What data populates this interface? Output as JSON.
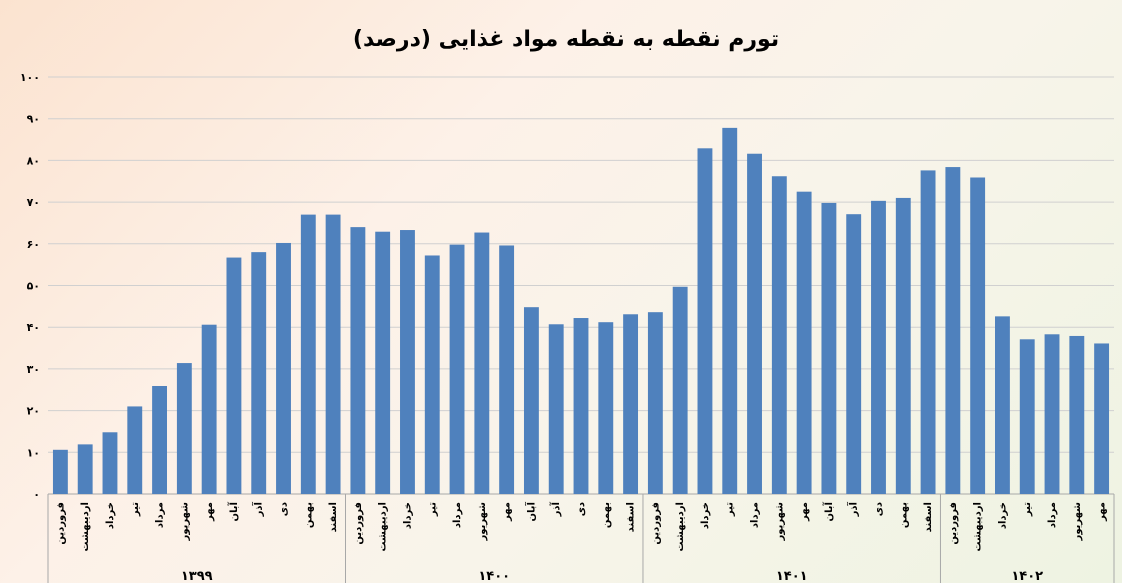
{
  "chart_data": {
    "type": "bar",
    "title": "تورم نقطه به نقطه مواد غذایی (درصد)",
    "xlabel": "",
    "ylabel": "",
    "ylim": [
      0,
      100
    ],
    "yticks": [
      "۰",
      "۱۰",
      "۲۰",
      "۳۰",
      "۴۰",
      "۵۰",
      "۶۰",
      "۷۰",
      "۸۰",
      "۹۰",
      "۱۰۰"
    ],
    "ytick_values": [
      0,
      10,
      20,
      30,
      40,
      50,
      60,
      70,
      80,
      90,
      100
    ],
    "grid": true,
    "legend": "none",
    "bar_color": "#4f81bd",
    "categories": [
      "فروردین",
      "اردیبهشت",
      "خرداد",
      "تیر",
      "مرداد",
      "شهریور",
      "مهر",
      "آبان",
      "آذر",
      "دی",
      "بهمن",
      "اسفند",
      "فروردین",
      "اردیبهشت",
      "خرداد",
      "تیر",
      "مرداد",
      "شهریور",
      "مهر",
      "آبان",
      "آذر",
      "دی",
      "بهمن",
      "اسفند",
      "فروردین",
      "اردیبهشت",
      "خرداد",
      "تیر",
      "مرداد",
      "شهریور",
      "مهر",
      "آبان",
      "آذر",
      "دی",
      "بهمن",
      "اسفند",
      "فروردین",
      "اردیبهشت",
      "خرداد",
      "تیر",
      "مرداد",
      "شهریور",
      "مهر"
    ],
    "values": [
      10.6,
      11.9,
      14.8,
      21.0,
      25.9,
      31.4,
      40.6,
      56.7,
      58.0,
      60.2,
      67.0,
      67.0,
      64.0,
      62.9,
      63.3,
      57.2,
      59.8,
      62.7,
      59.6,
      44.8,
      40.7,
      42.2,
      41.2,
      43.1,
      43.6,
      49.7,
      82.9,
      87.8,
      81.6,
      76.2,
      72.5,
      69.8,
      67.1,
      70.3,
      71.0,
      77.6,
      78.4,
      75.9,
      42.6,
      37.1,
      38.3,
      37.9,
      36.1
    ],
    "groups": [
      {
        "label": "۱۳۹۹",
        "start": 0,
        "count": 12
      },
      {
        "label": "۱۴۰۰",
        "start": 12,
        "count": 12
      },
      {
        "label": "۱۴۰۱",
        "start": 24,
        "count": 12
      },
      {
        "label": "۱۴۰۲",
        "start": 36,
        "count": 7
      }
    ]
  }
}
